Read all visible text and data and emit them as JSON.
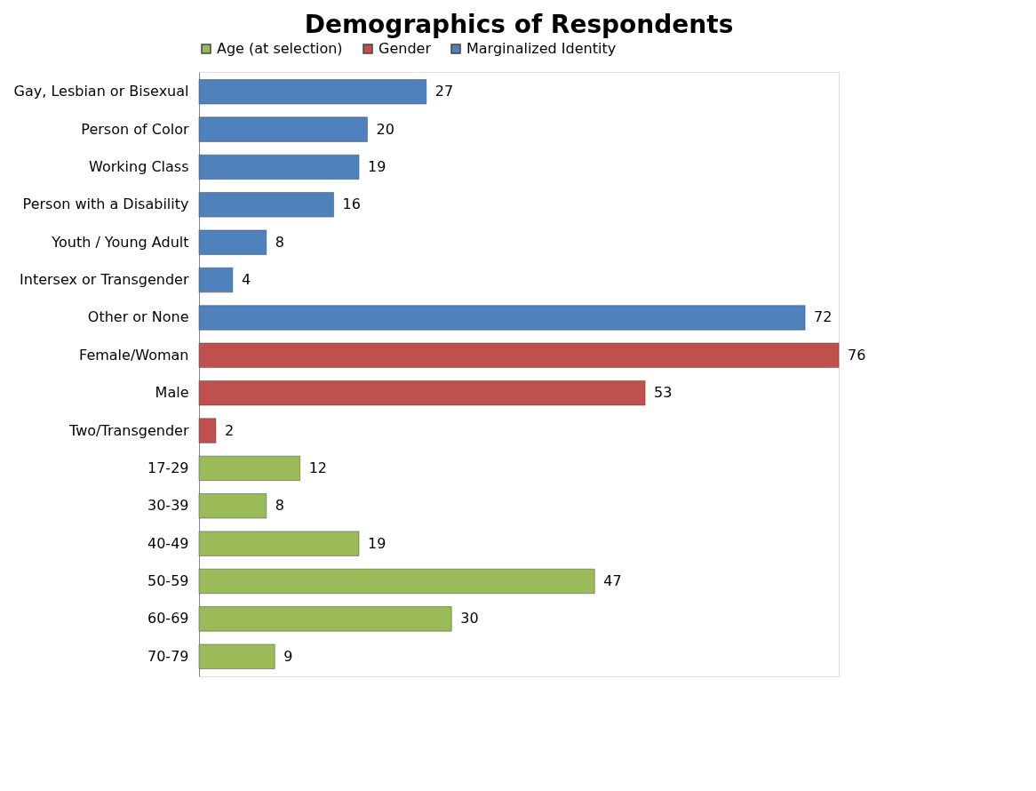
{
  "chart_data": {
    "type": "bar",
    "orientation": "horizontal",
    "title": "Demographics of Respondents",
    "categories": [
      "Gay, Lesbian or Bisexual",
      "Person of Color",
      "Working Class",
      "Person with a Disability",
      "Youth / Young Adult",
      "Intersex or Transgender",
      "Other or None",
      "Female/Woman",
      "Male",
      "Two/Transgender",
      "17-29",
      "30-39",
      "40-49",
      "50-59",
      "60-69",
      "70-79"
    ],
    "series": [
      {
        "name": "Age (at selection)",
        "color": "#9bbb59",
        "values": [
          null,
          null,
          null,
          null,
          null,
          null,
          null,
          null,
          null,
          null,
          12,
          8,
          19,
          47,
          30,
          9
        ]
      },
      {
        "name": "Gender",
        "color": "#c0504d",
        "values": [
          null,
          null,
          null,
          null,
          null,
          null,
          null,
          76,
          53,
          2,
          null,
          null,
          null,
          null,
          null,
          null
        ]
      },
      {
        "name": "Marginalized Identity",
        "color": "#4f81bd",
        "values": [
          27,
          20,
          19,
          16,
          8,
          4,
          72,
          null,
          null,
          null,
          null,
          null,
          null,
          null,
          null,
          null
        ]
      }
    ],
    "data_labels": true,
    "legend": "top",
    "grid": false
  }
}
